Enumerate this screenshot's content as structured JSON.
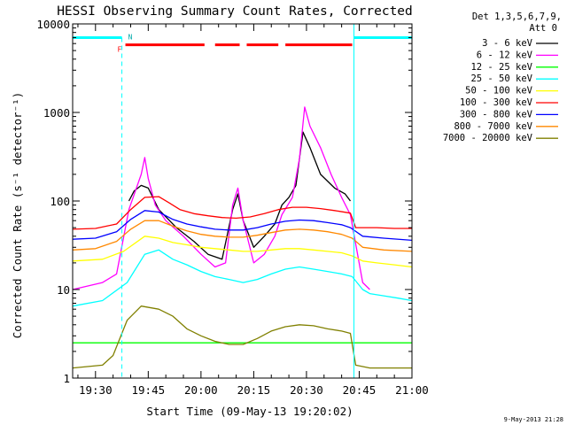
{
  "chart_data": {
    "type": "line",
    "title": "HESSI Observing Summary Count Rates, Corrected",
    "xlabel": "Start Time (09-May-13 19:20:02)",
    "ylabel": "Corrected Count Rate (s⁻¹ detector⁻¹)",
    "x_units": "minutes since 19:20",
    "xlim": [
      3.5,
      100
    ],
    "ylim": [
      1,
      10000
    ],
    "yscale": "log",
    "x_ticks": [
      {
        "value": 10,
        "label": "19:30"
      },
      {
        "value": 25,
        "label": "19:45"
      },
      {
        "value": 40,
        "label": "20:00"
      },
      {
        "value": 55,
        "label": "20:15"
      },
      {
        "value": 70,
        "label": "20:30"
      },
      {
        "value": 85,
        "label": "20:45"
      },
      {
        "value": 100,
        "label": "21:00"
      }
    ],
    "y_ticks": [
      {
        "value": 1,
        "label": "1"
      },
      {
        "value": 10,
        "label": "10"
      },
      {
        "value": 100,
        "label": "100"
      },
      {
        "value": 1000,
        "label": "1000"
      },
      {
        "value": 10000,
        "label": "10000"
      }
    ],
    "legend_header": [
      "Det 1,3,5,6,7,9,",
      "Att 0"
    ],
    "legend_position": "top-right",
    "series": [
      {
        "name": "3 - 6 keV",
        "color": "#000000",
        "points": [
          [
            19.5,
            100
          ],
          [
            21,
            130
          ],
          [
            23,
            150
          ],
          [
            25,
            140
          ],
          [
            28,
            80
          ],
          [
            33,
            50
          ],
          [
            38,
            35
          ],
          [
            42,
            25
          ],
          [
            46,
            22
          ],
          [
            49,
            80
          ],
          [
            50.5,
            120
          ],
          [
            52,
            60
          ],
          [
            55,
            30
          ],
          [
            58,
            40
          ],
          [
            61,
            55
          ],
          [
            63,
            90
          ],
          [
            65,
            110
          ],
          [
            67,
            150
          ],
          [
            69,
            600
          ],
          [
            71,
            400
          ],
          [
            74,
            200
          ],
          [
            78,
            140
          ],
          [
            81,
            120
          ],
          [
            82.5,
            100
          ]
        ]
      },
      {
        "name": "6 - 12 keV",
        "color": "#ff00ff",
        "points": [
          [
            3.5,
            10
          ],
          [
            12,
            12
          ],
          [
            16,
            15
          ],
          [
            19.5,
            80
          ],
          [
            23,
            200
          ],
          [
            24,
            310
          ],
          [
            25,
            180
          ],
          [
            27,
            90
          ],
          [
            30,
            60
          ],
          [
            35,
            40
          ],
          [
            40,
            25
          ],
          [
            44,
            18
          ],
          [
            47,
            20
          ],
          [
            49,
            90
          ],
          [
            50.5,
            140
          ],
          [
            52,
            60
          ],
          [
            55,
            20
          ],
          [
            58,
            25
          ],
          [
            61,
            40
          ],
          [
            63,
            70
          ],
          [
            66,
            110
          ],
          [
            68,
            300
          ],
          [
            69.5,
            1150
          ],
          [
            71,
            700
          ],
          [
            74,
            400
          ],
          [
            77,
            200
          ],
          [
            80,
            110
          ],
          [
            82.5,
            70
          ],
          [
            86,
            12
          ],
          [
            88,
            10
          ]
        ]
      },
      {
        "name": "12 - 25 keV",
        "color": "#00ff00",
        "points": [
          [
            3.5,
            2.5
          ],
          [
            100,
            2.5
          ]
        ]
      },
      {
        "name": "25 - 50 keV",
        "color": "#00ffff",
        "points": [
          [
            3.5,
            6.5
          ],
          [
            12,
            7.5
          ],
          [
            19,
            12
          ],
          [
            24,
            25
          ],
          [
            28,
            28
          ],
          [
            32,
            22
          ],
          [
            36,
            19
          ],
          [
            40,
            16
          ],
          [
            44,
            14
          ],
          [
            48,
            13
          ],
          [
            52,
            12
          ],
          [
            56,
            13
          ],
          [
            60,
            15
          ],
          [
            64,
            17
          ],
          [
            68,
            18
          ],
          [
            72,
            17
          ],
          [
            76,
            16
          ],
          [
            80,
            15
          ],
          [
            83,
            14
          ],
          [
            86,
            10
          ],
          [
            88,
            9
          ],
          [
            92,
            8.5
          ],
          [
            96,
            8
          ],
          [
            100,
            7.5
          ]
        ]
      },
      {
        "name": "50 - 100 keV",
        "color": "#ffff00",
        "points": [
          [
            3.5,
            21
          ],
          [
            12,
            22
          ],
          [
            18,
            27
          ],
          [
            24,
            40
          ],
          [
            28,
            38
          ],
          [
            32,
            34
          ],
          [
            36,
            32
          ],
          [
            40,
            30
          ],
          [
            44,
            29
          ],
          [
            48,
            28
          ],
          [
            52,
            27
          ],
          [
            56,
            27
          ],
          [
            60,
            28
          ],
          [
            64,
            29
          ],
          [
            68,
            29
          ],
          [
            72,
            28
          ],
          [
            76,
            27
          ],
          [
            80,
            26
          ],
          [
            83,
            24
          ],
          [
            86,
            21
          ],
          [
            90,
            20
          ],
          [
            95,
            19
          ],
          [
            100,
            18
          ]
        ]
      },
      {
        "name": "100 - 300 keV",
        "color": "#ff0000",
        "points": [
          [
            3.5,
            48
          ],
          [
            10,
            49
          ],
          [
            16,
            55
          ],
          [
            20,
            80
          ],
          [
            24,
            110
          ],
          [
            28,
            112
          ],
          [
            31,
            95
          ],
          [
            34,
            80
          ],
          [
            38,
            72
          ],
          [
            42,
            68
          ],
          [
            46,
            65
          ],
          [
            50,
            64
          ],
          [
            54,
            66
          ],
          [
            58,
            72
          ],
          [
            62,
            80
          ],
          [
            66,
            85
          ],
          [
            70,
            85
          ],
          [
            74,
            82
          ],
          [
            78,
            78
          ],
          [
            82.5,
            73
          ],
          [
            84,
            50
          ],
          [
            90,
            50
          ],
          [
            95,
            49
          ],
          [
            100,
            49
          ]
        ]
      },
      {
        "name": "300 - 800 keV",
        "color": "#0000ff",
        "points": [
          [
            3.5,
            37
          ],
          [
            10,
            38
          ],
          [
            16,
            45
          ],
          [
            20,
            62
          ],
          [
            24,
            78
          ],
          [
            28,
            75
          ],
          [
            32,
            62
          ],
          [
            36,
            55
          ],
          [
            40,
            51
          ],
          [
            44,
            48
          ],
          [
            48,
            47
          ],
          [
            52,
            47
          ],
          [
            56,
            50
          ],
          [
            60,
            55
          ],
          [
            64,
            59
          ],
          [
            68,
            61
          ],
          [
            72,
            60
          ],
          [
            76,
            57
          ],
          [
            80,
            54
          ],
          [
            82.5,
            50
          ],
          [
            86,
            40
          ],
          [
            92,
            38
          ],
          [
            100,
            36
          ]
        ]
      },
      {
        "name": "800 - 7000 keV",
        "color": "#ff8800",
        "points": [
          [
            3.5,
            28
          ],
          [
            10,
            29
          ],
          [
            16,
            35
          ],
          [
            20,
            48
          ],
          [
            24,
            60
          ],
          [
            28,
            60
          ],
          [
            32,
            52
          ],
          [
            36,
            46
          ],
          [
            40,
            42
          ],
          [
            44,
            40
          ],
          [
            48,
            39
          ],
          [
            52,
            39
          ],
          [
            56,
            41
          ],
          [
            60,
            44
          ],
          [
            64,
            47
          ],
          [
            68,
            48
          ],
          [
            72,
            47
          ],
          [
            76,
            45
          ],
          [
            80,
            42
          ],
          [
            83,
            38
          ],
          [
            86,
            30
          ],
          [
            92,
            28
          ],
          [
            100,
            27
          ]
        ]
      },
      {
        "name": "7000 - 20000 keV",
        "color": "#808000",
        "points": [
          [
            3.5,
            1.3
          ],
          [
            12,
            1.4
          ],
          [
            15,
            1.8
          ],
          [
            19,
            4.5
          ],
          [
            23,
            6.5
          ],
          [
            28,
            6
          ],
          [
            32,
            5
          ],
          [
            36,
            3.6
          ],
          [
            40,
            3
          ],
          [
            44,
            2.6
          ],
          [
            48,
            2.4
          ],
          [
            52,
            2.4
          ],
          [
            56,
            2.8
          ],
          [
            60,
            3.4
          ],
          [
            64,
            3.8
          ],
          [
            68,
            4
          ],
          [
            72,
            3.9
          ],
          [
            76,
            3.6
          ],
          [
            80,
            3.4
          ],
          [
            82.5,
            3.2
          ],
          [
            84,
            1.4
          ],
          [
            88,
            1.3
          ],
          [
            92,
            1.3
          ],
          [
            100,
            1.3
          ]
        ]
      }
    ],
    "flags": {
      "night": {
        "label": "N",
        "color": "#00ffff",
        "y": 7000,
        "segments": [
          [
            3.5,
            17.5
          ],
          [
            83.5,
            100
          ]
        ]
      },
      "flare": {
        "label": "F",
        "color": "#ff0000",
        "y": 5800,
        "segments": [
          [
            18.5,
            41
          ],
          [
            44,
            51
          ],
          [
            53,
            62
          ],
          [
            64,
            83
          ]
        ]
      },
      "saa_lines": [
        17.5,
        100
      ],
      "attenuator_lines": [
        3.5,
        83.5
      ]
    },
    "footer_date": "9-May-2013 21:28"
  }
}
